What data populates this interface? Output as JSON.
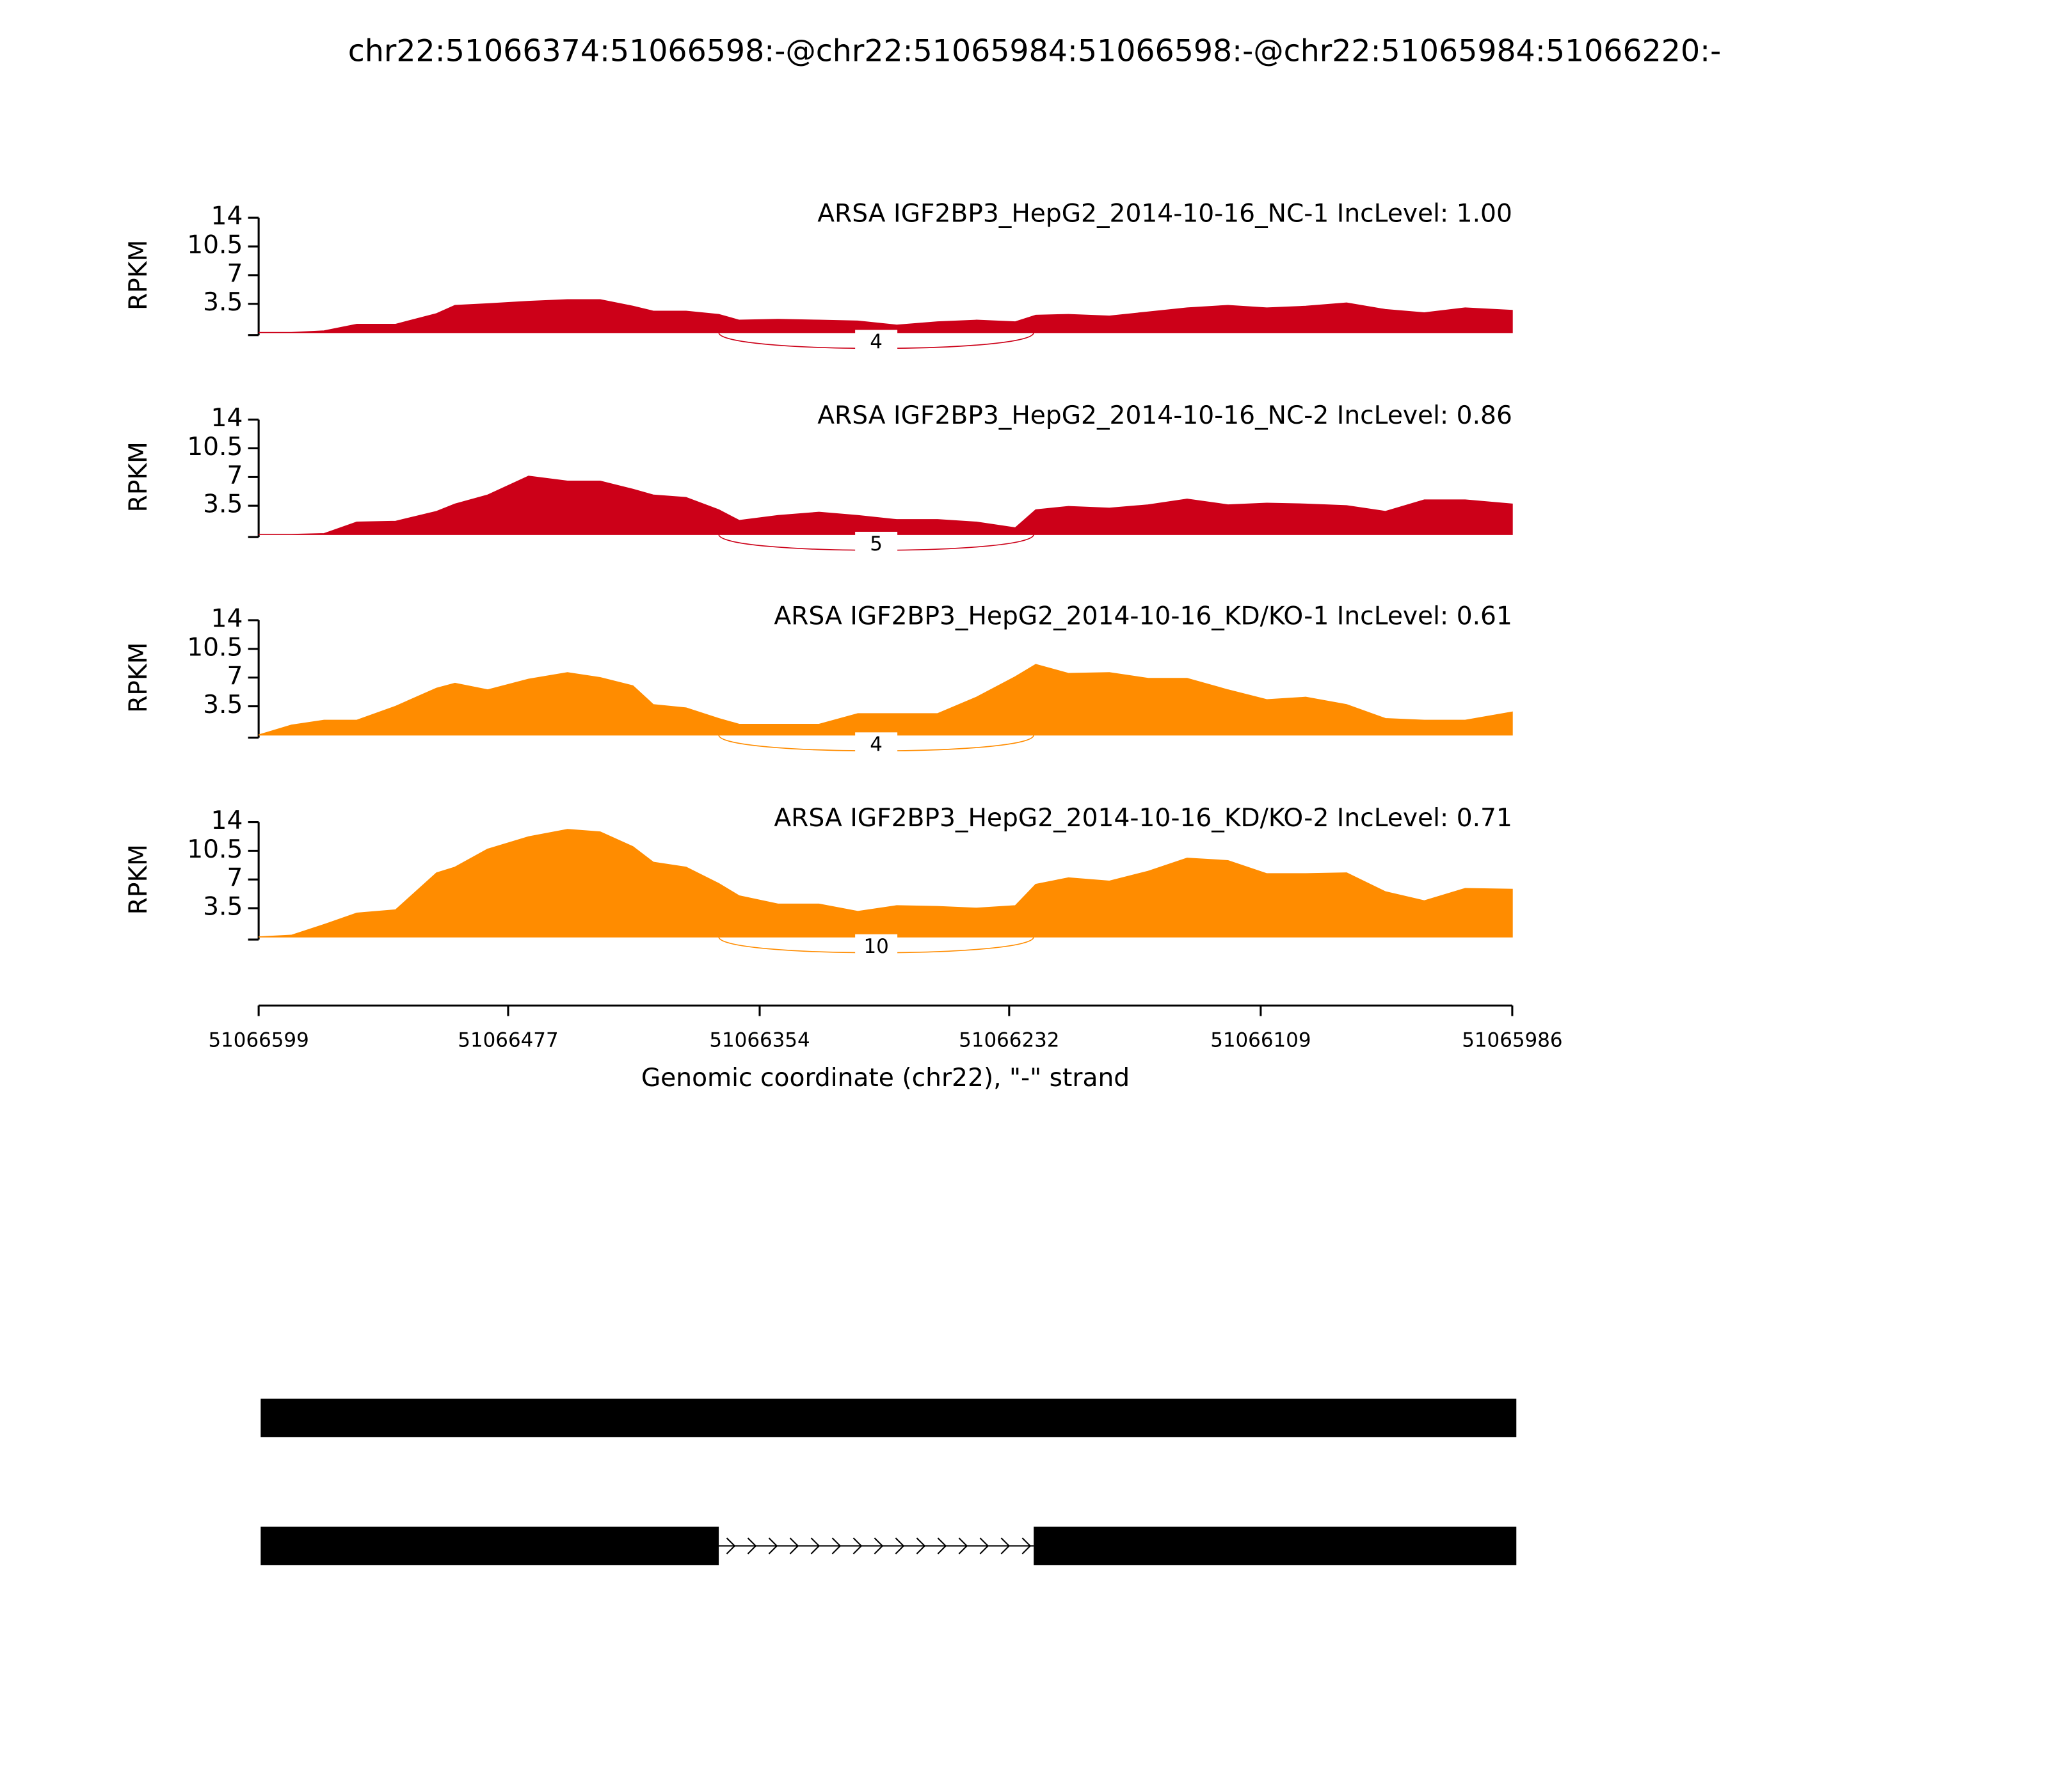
{
  "chart_data": {
    "type": "sashimi",
    "title": "chr22:51066374:51066598:-@chr22:51065984:51066598:-@chr22:51065984:51066220:-",
    "xlabel": "Genomic coordinate (chr22), \"-\" strand",
    "xlim": [
      51066599,
      51065986
    ],
    "xticks": [
      51066599,
      51066477,
      51066354,
      51066232,
      51066109,
      51065986
    ],
    "x": [
      51066599,
      51066583,
      51066567,
      51066551,
      51066532,
      51066512,
      51066503,
      51066487,
      51066467,
      51066448,
      51066432,
      51066416,
      51066406,
      51066390,
      51066374,
      51066364,
      51066345,
      51066325,
      51066306,
      51066287,
      51066267,
      51066248,
      51066229,
      51066219,
      51066203,
      51066183,
      51066164,
      51066145,
      51066125,
      51066106,
      51066087,
      51066067,
      51066048,
      51066029,
      51066009,
      51065986
    ],
    "panels": [
      {
        "label": "ARSA IGF2BP3_HepG2_2014-10-16_NC-1 IncLevel: 1.00",
        "color": "#cc0018",
        "ylabel": "RPKM",
        "ylim": [
          0,
          14
        ],
        "yticks": [
          3.5,
          7,
          10.5,
          14
        ],
        "values": [
          0,
          0,
          0.2,
          1,
          1,
          2.3,
          3.3,
          3.5,
          3.8,
          4,
          4,
          3.2,
          2.6,
          2.6,
          2.2,
          1.5,
          1.6,
          1.5,
          1.4,
          0.9,
          1.3,
          1.5,
          1.3,
          2.1,
          2.2,
          2,
          2.5,
          3,
          3.3,
          3,
          3.2,
          3.6,
          2.8,
          2.4,
          3,
          2.7
        ],
        "junctions": [
          {
            "start": 51066374,
            "end": 51066220,
            "count": 4
          }
        ]
      },
      {
        "label": "ARSA IGF2BP3_HepG2_2014-10-16_NC-2 IncLevel: 0.86",
        "color": "#cc0018",
        "ylabel": "RPKM",
        "ylim": [
          0,
          14
        ],
        "yticks": [
          3.5,
          7,
          10.5,
          14
        ],
        "values": [
          0,
          0,
          0.1,
          1.5,
          1.6,
          2.8,
          3.7,
          4.8,
          7.1,
          6.5,
          6.5,
          5.5,
          4.8,
          4.5,
          3,
          1.7,
          2.3,
          2.7,
          2.3,
          1.8,
          1.8,
          1.5,
          0.8,
          3,
          3.4,
          3.2,
          3.6,
          4.3,
          3.6,
          3.8,
          3.7,
          3.5,
          2.8,
          4.2,
          4.2,
          3.7
        ],
        "junctions": [
          {
            "start": 51066374,
            "end": 51066220,
            "count": 5
          }
        ]
      },
      {
        "label": "ARSA IGF2BP3_HepG2_2014-10-16_KD/KO-1 IncLevel: 0.61",
        "color": "#ff8c00",
        "ylabel": "RPKM",
        "ylim": [
          0,
          14
        ],
        "yticks": [
          3.5,
          7,
          10.5,
          14
        ],
        "values": [
          0,
          1.2,
          1.8,
          1.8,
          3.5,
          5.7,
          6.3,
          5.5,
          6.8,
          7.6,
          7,
          6,
          3.7,
          3.3,
          2,
          1.3,
          1.3,
          1.3,
          2.6,
          2.6,
          2.6,
          4.6,
          7.1,
          8.6,
          7.5,
          7.6,
          6.9,
          6.9,
          5.5,
          4.3,
          4.6,
          3.7,
          2,
          1.8,
          1.8,
          2.8
        ],
        "junctions": [
          {
            "start": 51066374,
            "end": 51066220,
            "count": 4
          }
        ]
      },
      {
        "label": "ARSA IGF2BP3_HepG2_2014-10-16_KD/KO-2 IncLevel: 0.71",
        "color": "#ff8c00",
        "ylabel": "RPKM",
        "ylim": [
          0,
          14
        ],
        "yticks": [
          3.5,
          7,
          10.5,
          14
        ],
        "values": [
          0,
          0.2,
          1.5,
          2.9,
          3.3,
          7.8,
          8.5,
          10.7,
          12.2,
          13.1,
          12.8,
          11,
          9.1,
          8.5,
          6.5,
          5,
          4,
          4,
          3.1,
          3.8,
          3.7,
          3.5,
          3.8,
          6.4,
          7.2,
          6.8,
          8,
          9.6,
          9.3,
          7.7,
          7.7,
          7.8,
          5.5,
          4.4,
          5.9,
          5.8
        ],
        "junctions": [
          {
            "start": 51066374,
            "end": 51066220,
            "count": 10
          }
        ]
      }
    ],
    "transcripts": [
      {
        "exons": [
          [
            51065984,
            51066598
          ]
        ]
      },
      {
        "exons": [
          [
            51066374,
            51066598
          ],
          [
            51065984,
            51066220
          ]
        ]
      }
    ]
  }
}
